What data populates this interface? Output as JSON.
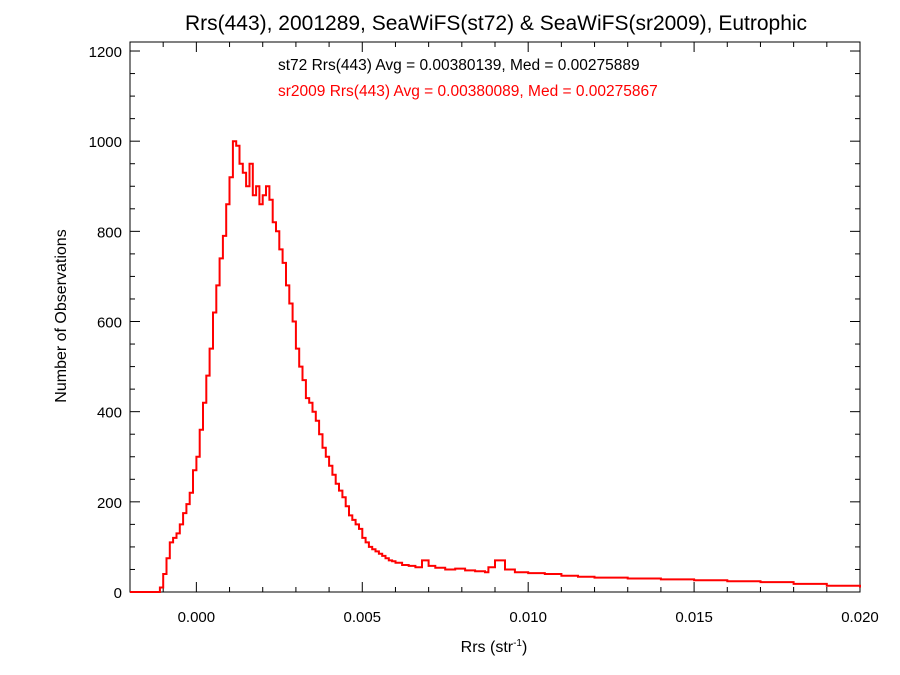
{
  "chart_data": {
    "type": "step",
    "title": "Rrs(443), 2001289, SeaWiFS(st72) & SeaWiFS(sr2009), Eutrophic",
    "xlabel": "Rrs (str",
    "xlabel_sup": "-1",
    "xlabel_close": ")",
    "ylabel": "Number of Observations",
    "xlim": [
      -0.002,
      0.02
    ],
    "ylim": [
      0,
      1220
    ],
    "x_ticks": [
      0.0,
      0.005,
      0.01,
      0.015,
      0.02
    ],
    "x_tick_labels": [
      "0.000",
      "0.005",
      "0.010",
      "0.015",
      "0.020"
    ],
    "y_ticks": [
      0,
      200,
      400,
      600,
      800,
      1000,
      1200
    ],
    "y_tick_labels": [
      "0",
      "200",
      "400",
      "600",
      "800",
      "1000",
      "1200"
    ],
    "bin_width": 0.0001,
    "grid": false,
    "annotations": [
      {
        "text": "st72 Rrs(443) Avg = 0.00380139, Med = 0.00275889",
        "color": "#000000"
      },
      {
        "text": "sr2009 Rrs(443) Avg = 0.00380089, Med = 0.00275867",
        "color": "#ff0000"
      }
    ],
    "series": [
      {
        "color": "#ff0000",
        "x": [
          -0.002,
          -0.0011,
          -0.001,
          -0.0009,
          -0.0008,
          -0.0007,
          -0.0006,
          -0.0005,
          -0.0004,
          -0.0003,
          -0.0002,
          -0.0001,
          0.0,
          0.0001,
          0.0002,
          0.0003,
          0.0004,
          0.0005,
          0.0006,
          0.0007,
          0.0008,
          0.0009,
          0.001,
          0.0011,
          0.0012,
          0.0013,
          0.0014,
          0.0015,
          0.0016,
          0.0017,
          0.0018,
          0.0019,
          0.002,
          0.0021,
          0.0022,
          0.0023,
          0.0024,
          0.0025,
          0.0026,
          0.0027,
          0.0028,
          0.0029,
          0.003,
          0.0031,
          0.0032,
          0.0033,
          0.0034,
          0.0035,
          0.0036,
          0.0037,
          0.0038,
          0.0039,
          0.004,
          0.0041,
          0.0042,
          0.0043,
          0.0044,
          0.0045,
          0.0046,
          0.0047,
          0.0048,
          0.0049,
          0.005,
          0.0051,
          0.0052,
          0.0053,
          0.0054,
          0.0055,
          0.0056,
          0.0057,
          0.0058,
          0.0059,
          0.006,
          0.0062,
          0.0064,
          0.0066,
          0.0068,
          0.007,
          0.0072,
          0.0075,
          0.0078,
          0.0081,
          0.0084,
          0.0087,
          0.0088,
          0.009,
          0.0093,
          0.0096,
          0.01,
          0.0105,
          0.011,
          0.0115,
          0.012,
          0.013,
          0.014,
          0.015,
          0.016,
          0.017,
          0.018,
          0.019,
          0.02
        ],
        "y": [
          0,
          10,
          40,
          75,
          110,
          120,
          130,
          150,
          175,
          195,
          220,
          270,
          300,
          360,
          420,
          480,
          540,
          620,
          680,
          740,
          790,
          860,
          920,
          1000,
          990,
          950,
          930,
          900,
          950,
          880,
          900,
          860,
          880,
          900,
          870,
          820,
          800,
          760,
          730,
          680,
          640,
          600,
          540,
          500,
          470,
          430,
          420,
          400,
          380,
          350,
          320,
          300,
          280,
          260,
          240,
          225,
          210,
          190,
          170,
          160,
          150,
          140,
          120,
          110,
          100,
          95,
          90,
          85,
          80,
          75,
          70,
          68,
          65,
          60,
          58,
          55,
          70,
          58,
          54,
          50,
          52,
          48,
          46,
          44,
          55,
          70,
          50,
          44,
          42,
          40,
          36,
          34,
          32,
          30,
          28,
          26,
          24,
          22,
          18,
          14,
          10
        ]
      }
    ]
  }
}
